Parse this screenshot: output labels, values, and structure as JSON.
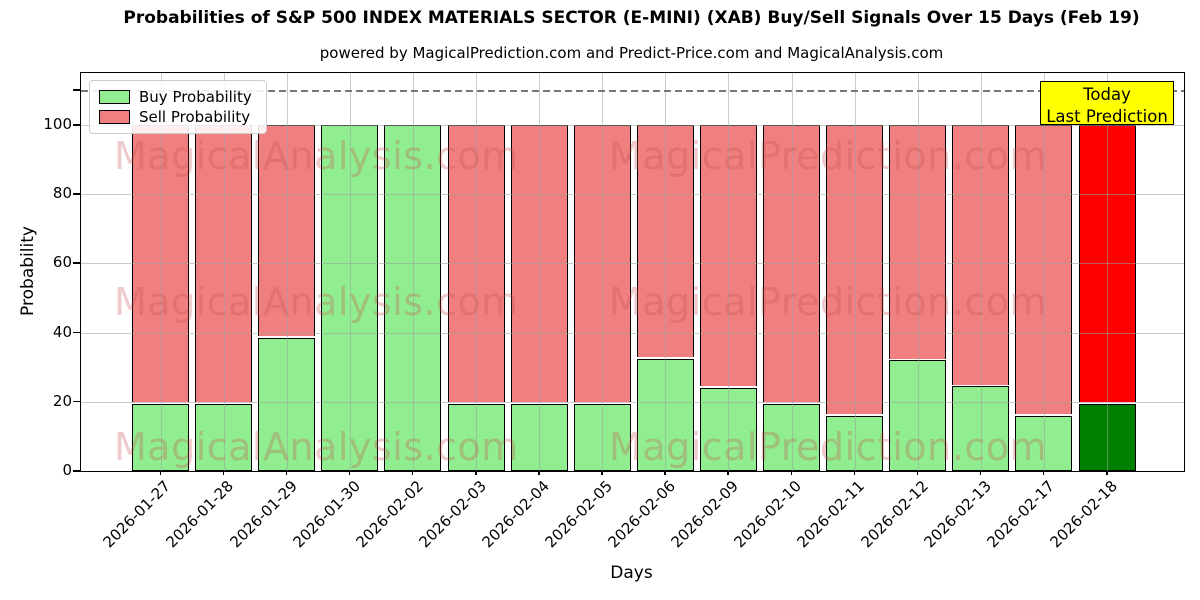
{
  "chart_data": {
    "type": "bar",
    "stacked": true,
    "title": "Probabilities of S&P 500 INDEX MATERIALS SECTOR (E-MINI) (XAB) Buy/Sell Signals Over 15 Days (Feb 19)",
    "subtitle": "powered by MagicalPrediction.com and Predict-Price.com and MagicalAnalysis.com",
    "xlabel": "Days",
    "ylabel": "Probability",
    "ylim": [
      0,
      115
    ],
    "yticks": [
      0,
      20,
      40,
      60,
      80,
      100
    ],
    "dashed_line_y": 110,
    "grid": true,
    "legend_position": "top-left",
    "categories": [
      "2026-01-27",
      "2026-01-28",
      "2026-01-29",
      "2026-01-30",
      "2026-02-02",
      "2026-02-03",
      "2026-02-04",
      "2026-02-05",
      "2026-02-06",
      "2026-02-09",
      "2026-02-10",
      "2026-02-11",
      "2026-02-12",
      "2026-02-13",
      "2026-02-17",
      "2026-02-18"
    ],
    "series": [
      {
        "name": "Buy Probability",
        "color": "#90EE90",
        "today_color": "#008000",
        "values": [
          19.4,
          19.4,
          38.5,
          100,
          100,
          19.4,
          19.4,
          19.4,
          32.5,
          24,
          19.4,
          16,
          32,
          24.5,
          16,
          19.4
        ]
      },
      {
        "name": "Sell Probability",
        "color": "#F08080",
        "today_color": "#FF0000",
        "values": [
          80.6,
          80.6,
          61.5,
          0,
          0,
          80.6,
          80.6,
          80.6,
          67.5,
          76,
          80.6,
          84,
          68,
          75.5,
          84,
          80.6
        ]
      }
    ],
    "today_index": 15,
    "annotation": {
      "lines": [
        "Today",
        "Last Prediction"
      ],
      "bg_color": "#FFFF00"
    },
    "watermarks": [
      "MagicalAnalysis.com",
      "MagicalPrediction.com"
    ]
  }
}
